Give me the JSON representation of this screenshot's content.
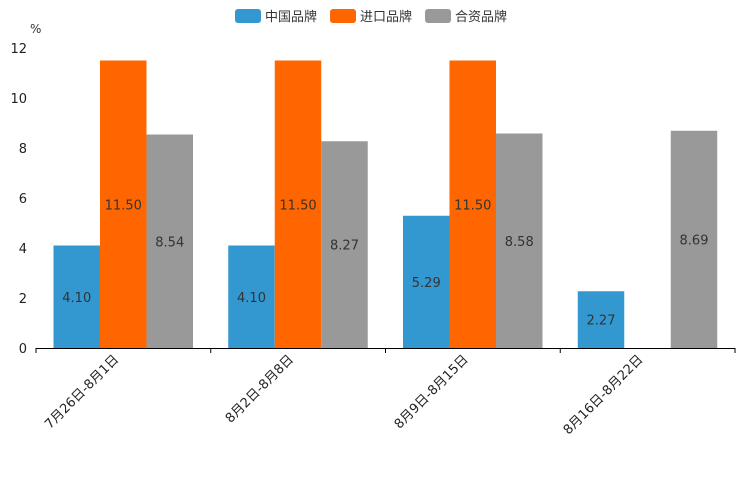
{
  "chart_data": {
    "type": "bar",
    "ylabel": "%",
    "ylim": [
      0,
      12
    ],
    "yticks": [
      "0",
      "2",
      "4",
      "6",
      "8",
      "10",
      "12"
    ],
    "categories": [
      "7月26日-8月1日",
      "8月2日-8月8日",
      "8月9日-8月15日",
      "8月16日-8月22日"
    ],
    "series": [
      {
        "name": "中国品牌",
        "color": "#3498d0",
        "values": [
          4.1,
          4.1,
          5.29,
          2.27
        ],
        "labels": [
          "4.10",
          "4.10",
          "5.29",
          "2.27"
        ]
      },
      {
        "name": "进口品牌",
        "color": "#ff6600",
        "values": [
          11.5,
          11.5,
          11.5,
          null
        ],
        "labels": [
          "11.50",
          "11.50",
          "11.50",
          null
        ]
      },
      {
        "name": "合资品牌",
        "color": "#999999",
        "values": [
          8.54,
          8.27,
          8.58,
          8.69
        ],
        "labels": [
          "8.54",
          "8.27",
          "8.58",
          "8.69"
        ]
      }
    ],
    "legend_position": "top-center"
  }
}
